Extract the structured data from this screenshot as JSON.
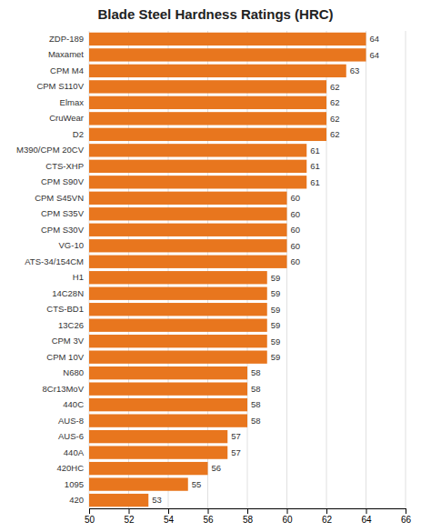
{
  "chart_data": {
    "type": "bar",
    "orientation": "horizontal",
    "title": "Blade Steel Hardness Ratings (HRC)",
    "categories": [
      "420",
      "1095",
      "420HC",
      "440A",
      "AUS-6",
      "AUS-8",
      "440C",
      "8Cr13MoV",
      "N680",
      "CPM 10V",
      "CPM 3V",
      "13C26",
      "CTS-BD1",
      "14C28N",
      "H1",
      "ATS-34/154CM",
      "VG-10",
      "CPM S30V",
      "CPM S35V",
      "CPM S45VN",
      "CPM S90V",
      "CTS-XHP",
      "M390/CPM 20CV",
      "D2",
      "CruWear",
      "Elmax",
      "CPM S110V",
      "CPM M4",
      "Maxamet",
      "ZDP-189"
    ],
    "values": [
      53,
      55,
      56,
      57,
      57,
      58,
      58,
      58,
      58,
      59,
      59,
      59,
      59,
      59,
      59,
      60,
      60,
      60,
      60,
      60,
      61,
      61,
      61,
      62,
      62,
      62,
      62,
      63,
      64,
      64
    ],
    "color": "#E8761E",
    "xlim": [
      50,
      66
    ],
    "xticks": [
      50,
      52,
      54,
      56,
      58,
      60,
      62,
      64,
      66
    ],
    "grid": true,
    "data_labels": true
  }
}
